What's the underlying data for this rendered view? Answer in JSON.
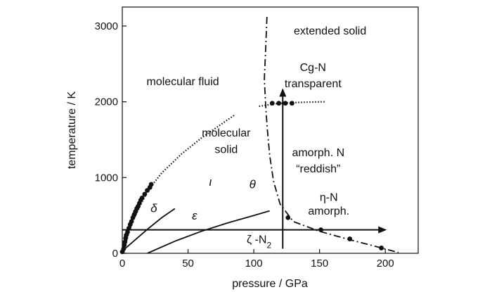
{
  "chart_data": {
    "type": "line",
    "title": "",
    "xlabel": "pressure / GPa",
    "ylabel": "temperature / K",
    "xlim": [
      0,
      225
    ],
    "ylim": [
      0,
      3250
    ],
    "xticks": [
      0,
      50,
      100,
      150,
      200
    ],
    "yticks": [
      0,
      1000,
      2000,
      3000
    ],
    "grid": false,
    "series": [
      {
        "style": "dotted",
        "points": [
          [
            1,
            20
          ],
          [
            3,
            150
          ],
          [
            6,
            330
          ],
          [
            10,
            500
          ],
          [
            15,
            680
          ],
          [
            20,
            840
          ],
          [
            30,
            1060
          ],
          [
            45,
            1310
          ],
          [
            60,
            1520
          ],
          [
            75,
            1700
          ],
          [
            85,
            1820
          ]
        ]
      },
      {
        "style": "scatter",
        "points": [
          [
            0,
            20
          ],
          [
            1,
            60
          ],
          [
            1.5,
            110
          ],
          [
            2,
            150
          ],
          [
            2.5,
            200
          ],
          [
            3,
            240
          ],
          [
            4,
            280
          ],
          [
            5,
            330
          ],
          [
            6,
            380
          ],
          [
            7,
            420
          ],
          [
            8,
            470
          ],
          [
            9,
            510
          ],
          [
            10,
            550
          ],
          [
            11,
            590
          ],
          [
            12,
            620
          ],
          [
            13,
            660
          ],
          [
            14,
            700
          ],
          [
            15,
            730
          ],
          [
            17,
            780
          ],
          [
            19,
            830
          ],
          [
            21,
            870
          ],
          [
            22,
            910
          ]
        ]
      },
      {
        "style": "solid",
        "points": [
          [
            0,
            30
          ],
          [
            10,
            180
          ],
          [
            20,
            330
          ],
          [
            30,
            470
          ],
          [
            40,
            590
          ]
        ]
      },
      {
        "style": "solid",
        "points": [
          [
            19,
            0
          ],
          [
            40,
            160
          ],
          [
            60,
            290
          ],
          [
            80,
            400
          ],
          [
            100,
            500
          ],
          [
            112,
            560
          ]
        ]
      },
      {
        "style": "dash-dot",
        "points": [
          [
            110,
            3120
          ],
          [
            109,
            2700
          ],
          [
            108,
            2300
          ],
          [
            109,
            1950
          ],
          [
            110,
            1700
          ],
          [
            112,
            1300
          ],
          [
            115,
            950
          ],
          [
            120,
            650
          ],
          [
            130,
            420
          ],
          [
            150,
            290
          ],
          [
            175,
            170
          ],
          [
            195,
            80
          ],
          [
            210,
            10
          ]
        ]
      },
      {
        "style": "dotted",
        "points": [
          [
            104,
            1940
          ],
          [
            115,
            1970
          ],
          [
            125,
            1985
          ],
          [
            140,
            1995
          ],
          [
            155,
            2000
          ]
        ]
      },
      {
        "style": "scatter",
        "points": [
          [
            114,
            1980
          ],
          [
            119,
            1980
          ],
          [
            124,
            1980
          ],
          [
            129,
            1980
          ],
          [
            126,
            470
          ],
          [
            151,
            310
          ],
          [
            173,
            190
          ],
          [
            197,
            70
          ]
        ]
      }
    ],
    "arrows": [
      {
        "from": [
          0,
          310
        ],
        "to": [
          200,
          310
        ]
      },
      {
        "from": [
          122,
          60
        ],
        "to": [
          122,
          2160
        ]
      }
    ],
    "annotations": [
      {
        "text": "extended solid",
        "x": 158,
        "y": 2890,
        "class": "region"
      },
      {
        "text": "Cg-N",
        "x": 145,
        "y": 2405,
        "class": "region"
      },
      {
        "text": "transparent",
        "x": 145,
        "y": 2190,
        "class": "region"
      },
      {
        "text": "molecular fluid",
        "x": 46,
        "y": 2220,
        "class": "region"
      },
      {
        "text": "molecular",
        "x": 79,
        "y": 1540,
        "class": "region"
      },
      {
        "text": "solid",
        "x": 79,
        "y": 1325,
        "class": "region"
      },
      {
        "text": "amorph. N",
        "x": 149,
        "y": 1280,
        "class": "region"
      },
      {
        "text": "“reddish”",
        "x": 149,
        "y": 1070,
        "class": "region"
      },
      {
        "text": "ι",
        "x": 67,
        "y": 890,
        "class": "phase"
      },
      {
        "text": "θ",
        "x": 99,
        "y": 860,
        "class": "phase"
      },
      {
        "text": "δ",
        "x": 24,
        "y": 545,
        "class": "phase"
      },
      {
        "text": "ε",
        "x": 55,
        "y": 445,
        "class": "phase"
      },
      {
        "text": "η-N",
        "x": 157,
        "y": 690,
        "class": "region"
      },
      {
        "text": "amorph.",
        "x": 157,
        "y": 510,
        "class": "region"
      },
      {
        "text": "ζ -N",
        "sub": "2",
        "x": 104,
        "y": 135,
        "class": "region"
      }
    ]
  }
}
